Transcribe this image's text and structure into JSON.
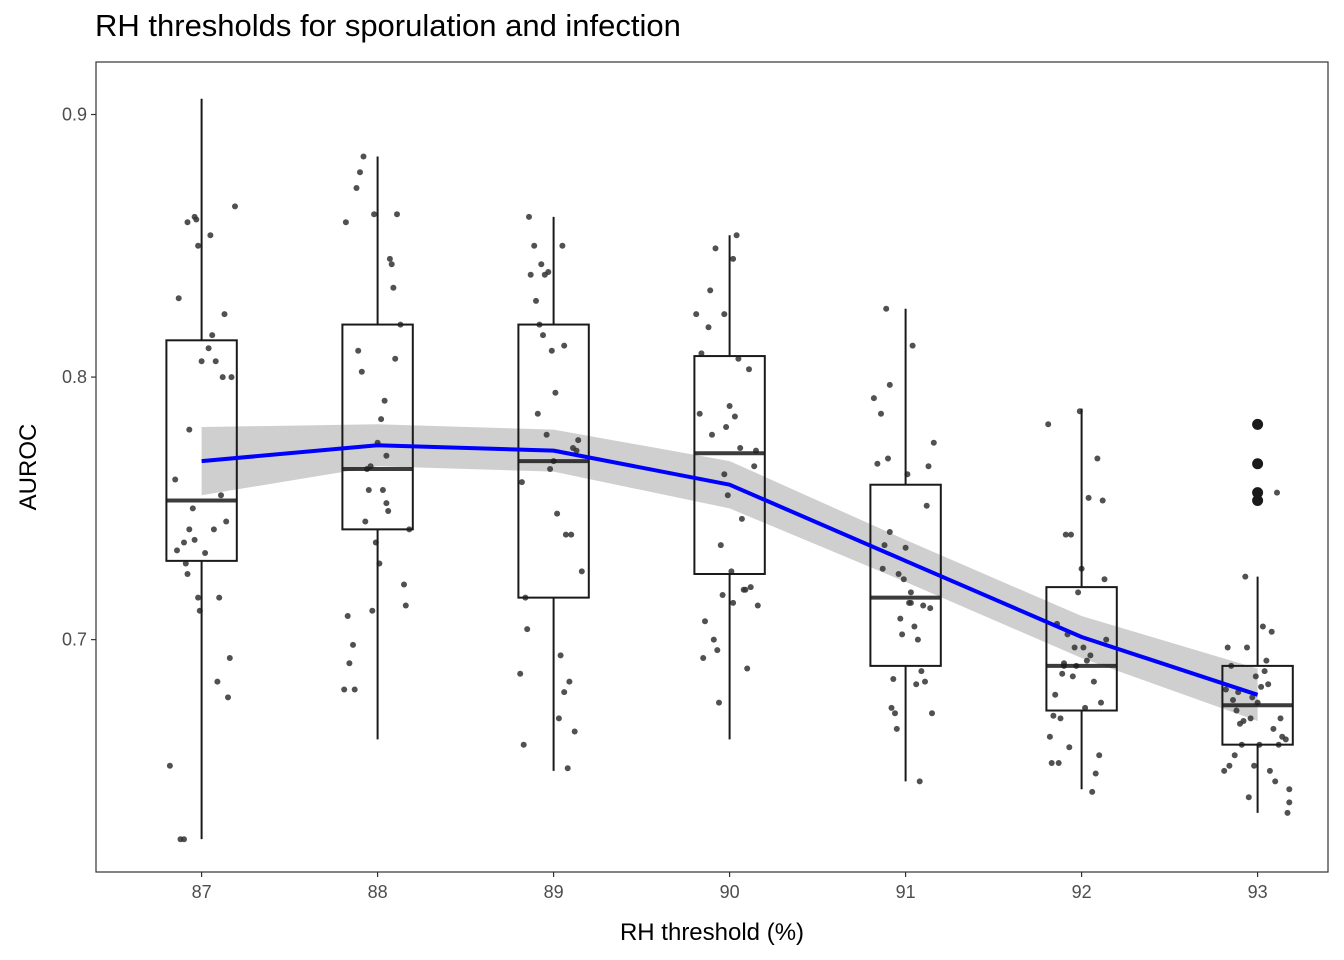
{
  "chart_data": {
    "type": "box",
    "title": "RH thresholds for sporulation and infection",
    "xlabel": "RH threshold (%)",
    "ylabel": "AUROC",
    "categories": [
      "87",
      "88",
      "89",
      "90",
      "91",
      "92",
      "93"
    ],
    "xlim": [
      86.4,
      93.4
    ],
    "ylim": [
      0.6115,
      0.92
    ],
    "yticks": [
      0.7,
      0.8,
      0.9
    ],
    "ytick_labels": [
      "0.7",
      "0.8",
      "0.9"
    ],
    "grid": false,
    "colors": {
      "trend": "#0000ff",
      "band": "#cccccc",
      "box": "#1a1a1a",
      "points": "#333333"
    },
    "boxes": [
      {
        "category": "87",
        "whisker_low": 0.624,
        "q1": 0.73,
        "median": 0.753,
        "q3": 0.814,
        "whisker_high": 0.906,
        "outliers": []
      },
      {
        "category": "88",
        "whisker_low": 0.662,
        "q1": 0.742,
        "median": 0.765,
        "q3": 0.82,
        "whisker_high": 0.884,
        "outliers": []
      },
      {
        "category": "89",
        "whisker_low": 0.65,
        "q1": 0.716,
        "median": 0.768,
        "q3": 0.82,
        "whisker_high": 0.861,
        "outliers": []
      },
      {
        "category": "90",
        "whisker_low": 0.662,
        "q1": 0.725,
        "median": 0.771,
        "q3": 0.808,
        "whisker_high": 0.854,
        "outliers": []
      },
      {
        "category": "91",
        "whisker_low": 0.646,
        "q1": 0.69,
        "median": 0.716,
        "q3": 0.759,
        "whisker_high": 0.826,
        "outliers": []
      },
      {
        "category": "92",
        "whisker_low": 0.643,
        "q1": 0.673,
        "median": 0.69,
        "q3": 0.72,
        "whisker_high": 0.788,
        "outliers": []
      },
      {
        "category": "93",
        "whisker_low": 0.634,
        "q1": 0.66,
        "median": 0.675,
        "q3": 0.69,
        "whisker_high": 0.724,
        "outliers": [
          0.782,
          0.767,
          0.756,
          0.753
        ]
      }
    ],
    "trend_line": {
      "x": [
        87,
        88,
        89,
        90,
        91,
        92,
        93
      ],
      "y": [
        0.768,
        0.774,
        0.772,
        0.759,
        0.73,
        0.701,
        0.679
      ],
      "band_low": [
        0.755,
        0.766,
        0.764,
        0.75,
        0.722,
        0.693,
        0.669
      ],
      "band_high": [
        0.781,
        0.782,
        0.78,
        0.768,
        0.738,
        0.709,
        0.689
      ]
    },
    "jitter_points": [
      {
        "x": 86.82,
        "y": 0.652
      },
      {
        "x": 86.85,
        "y": 0.761
      },
      {
        "x": 86.86,
        "y": 0.734
      },
      {
        "x": 86.87,
        "y": 0.83
      },
      {
        "x": 86.88,
        "y": 0.624
      },
      {
        "x": 86.9,
        "y": 0.624
      },
      {
        "x": 86.9,
        "y": 0.737
      },
      {
        "x": 86.91,
        "y": 0.729
      },
      {
        "x": 86.92,
        "y": 0.725
      },
      {
        "x": 86.92,
        "y": 0.859
      },
      {
        "x": 86.93,
        "y": 0.78
      },
      {
        "x": 86.95,
        "y": 0.75
      },
      {
        "x": 86.96,
        "y": 0.861
      },
      {
        "x": 86.97,
        "y": 0.86
      },
      {
        "x": 86.98,
        "y": 0.85
      },
      {
        "x": 86.98,
        "y": 0.716
      },
      {
        "x": 86.99,
        "y": 0.711
      },
      {
        "x": 86.96,
        "y": 0.738
      },
      {
        "x": 87.0,
        "y": 0.806
      },
      {
        "x": 87.04,
        "y": 0.811
      },
      {
        "x": 87.05,
        "y": 0.854
      },
      {
        "x": 87.06,
        "y": 0.816
      },
      {
        "x": 87.07,
        "y": 0.742
      },
      {
        "x": 87.08,
        "y": 0.806
      },
      {
        "x": 87.09,
        "y": 0.684
      },
      {
        "x": 87.1,
        "y": 0.716
      },
      {
        "x": 87.12,
        "y": 0.8
      },
      {
        "x": 87.13,
        "y": 0.824
      },
      {
        "x": 87.14,
        "y": 0.745
      },
      {
        "x": 87.15,
        "y": 0.678
      },
      {
        "x": 87.16,
        "y": 0.693
      },
      {
        "x": 87.17,
        "y": 0.8
      },
      {
        "x": 87.19,
        "y": 0.865
      },
      {
        "x": 86.93,
        "y": 0.742
      },
      {
        "x": 87.02,
        "y": 0.733
      },
      {
        "x": 87.11,
        "y": 0.755
      },
      {
        "x": 87.81,
        "y": 0.681
      },
      {
        "x": 87.82,
        "y": 0.859
      },
      {
        "x": 87.83,
        "y": 0.709
      },
      {
        "x": 87.84,
        "y": 0.691
      },
      {
        "x": 87.86,
        "y": 0.698
      },
      {
        "x": 87.87,
        "y": 0.681
      },
      {
        "x": 87.88,
        "y": 0.872
      },
      {
        "x": 87.89,
        "y": 0.81
      },
      {
        "x": 87.9,
        "y": 0.878
      },
      {
        "x": 87.91,
        "y": 0.802
      },
      {
        "x": 87.92,
        "y": 0.884
      },
      {
        "x": 87.93,
        "y": 0.745
      },
      {
        "x": 87.95,
        "y": 0.757
      },
      {
        "x": 87.96,
        "y": 0.766
      },
      {
        "x": 87.97,
        "y": 0.711
      },
      {
        "x": 87.98,
        "y": 0.862
      },
      {
        "x": 87.99,
        "y": 0.737
      },
      {
        "x": 88.01,
        "y": 0.729
      },
      {
        "x": 88.02,
        "y": 0.784
      },
      {
        "x": 88.03,
        "y": 0.757
      },
      {
        "x": 88.04,
        "y": 0.791
      },
      {
        "x": 88.05,
        "y": 0.752
      },
      {
        "x": 88.06,
        "y": 0.749
      },
      {
        "x": 88.07,
        "y": 0.845
      },
      {
        "x": 88.08,
        "y": 0.843
      },
      {
        "x": 88.09,
        "y": 0.834
      },
      {
        "x": 88.1,
        "y": 0.807
      },
      {
        "x": 88.11,
        "y": 0.862
      },
      {
        "x": 88.13,
        "y": 0.82
      },
      {
        "x": 88.15,
        "y": 0.721
      },
      {
        "x": 88.16,
        "y": 0.713
      },
      {
        "x": 88.18,
        "y": 0.742
      },
      {
        "x": 88.0,
        "y": 0.775
      },
      {
        "x": 88.05,
        "y": 0.77
      },
      {
        "x": 87.94,
        "y": 0.765
      },
      {
        "x": 88.81,
        "y": 0.687
      },
      {
        "x": 88.82,
        "y": 0.76
      },
      {
        "x": 88.83,
        "y": 0.66
      },
      {
        "x": 88.84,
        "y": 0.716
      },
      {
        "x": 88.85,
        "y": 0.704
      },
      {
        "x": 88.86,
        "y": 0.861
      },
      {
        "x": 88.87,
        "y": 0.839
      },
      {
        "x": 88.89,
        "y": 0.85
      },
      {
        "x": 88.9,
        "y": 0.829
      },
      {
        "x": 88.91,
        "y": 0.786
      },
      {
        "x": 88.92,
        "y": 0.82
      },
      {
        "x": 88.93,
        "y": 0.843
      },
      {
        "x": 88.94,
        "y": 0.816
      },
      {
        "x": 88.95,
        "y": 0.839
      },
      {
        "x": 88.96,
        "y": 0.778
      },
      {
        "x": 88.97,
        "y": 0.84
      },
      {
        "x": 88.99,
        "y": 0.81
      },
      {
        "x": 89.0,
        "y": 0.768
      },
      {
        "x": 89.01,
        "y": 0.794
      },
      {
        "x": 89.02,
        "y": 0.748
      },
      {
        "x": 89.03,
        "y": 0.67
      },
      {
        "x": 89.04,
        "y": 0.694
      },
      {
        "x": 89.05,
        "y": 0.85
      },
      {
        "x": 89.06,
        "y": 0.812
      },
      {
        "x": 89.07,
        "y": 0.74
      },
      {
        "x": 89.08,
        "y": 0.651
      },
      {
        "x": 89.09,
        "y": 0.684
      },
      {
        "x": 89.1,
        "y": 0.74
      },
      {
        "x": 89.12,
        "y": 0.665
      },
      {
        "x": 89.14,
        "y": 0.776
      },
      {
        "x": 89.16,
        "y": 0.726
      },
      {
        "x": 89.11,
        "y": 0.773
      },
      {
        "x": 89.13,
        "y": 0.772
      },
      {
        "x": 89.06,
        "y": 0.68
      },
      {
        "x": 88.98,
        "y": 0.765
      },
      {
        "x": 89.81,
        "y": 0.824
      },
      {
        "x": 89.83,
        "y": 0.786
      },
      {
        "x": 89.84,
        "y": 0.809
      },
      {
        "x": 89.85,
        "y": 0.693
      },
      {
        "x": 89.86,
        "y": 0.707
      },
      {
        "x": 89.88,
        "y": 0.819
      },
      {
        "x": 89.89,
        "y": 0.833
      },
      {
        "x": 89.9,
        "y": 0.778
      },
      {
        "x": 89.91,
        "y": 0.7
      },
      {
        "x": 89.92,
        "y": 0.849
      },
      {
        "x": 89.93,
        "y": 0.696
      },
      {
        "x": 89.94,
        "y": 0.676
      },
      {
        "x": 89.95,
        "y": 0.736
      },
      {
        "x": 89.96,
        "y": 0.717
      },
      {
        "x": 89.97,
        "y": 0.824
      },
      {
        "x": 89.98,
        "y": 0.781
      },
      {
        "x": 89.99,
        "y": 0.755
      },
      {
        "x": 90.0,
        "y": 0.789
      },
      {
        "x": 90.01,
        "y": 0.726
      },
      {
        "x": 90.02,
        "y": 0.845
      },
      {
        "x": 90.03,
        "y": 0.785
      },
      {
        "x": 90.04,
        "y": 0.854
      },
      {
        "x": 90.05,
        "y": 0.807
      },
      {
        "x": 90.06,
        "y": 0.773
      },
      {
        "x": 90.07,
        "y": 0.746
      },
      {
        "x": 90.08,
        "y": 0.719
      },
      {
        "x": 90.09,
        "y": 0.719
      },
      {
        "x": 90.1,
        "y": 0.689
      },
      {
        "x": 90.11,
        "y": 0.803
      },
      {
        "x": 90.12,
        "y": 0.72
      },
      {
        "x": 90.14,
        "y": 0.766
      },
      {
        "x": 90.16,
        "y": 0.713
      },
      {
        "x": 90.15,
        "y": 0.772
      },
      {
        "x": 89.97,
        "y": 0.763
      },
      {
        "x": 90.02,
        "y": 0.714
      },
      {
        "x": 90.82,
        "y": 0.792
      },
      {
        "x": 90.84,
        "y": 0.767
      },
      {
        "x": 90.86,
        "y": 0.786
      },
      {
        "x": 90.87,
        "y": 0.727
      },
      {
        "x": 90.88,
        "y": 0.736
      },
      {
        "x": 90.89,
        "y": 0.826
      },
      {
        "x": 90.9,
        "y": 0.769
      },
      {
        "x": 90.91,
        "y": 0.797
      },
      {
        "x": 90.92,
        "y": 0.674
      },
      {
        "x": 90.93,
        "y": 0.685
      },
      {
        "x": 90.94,
        "y": 0.672
      },
      {
        "x": 90.95,
        "y": 0.666
      },
      {
        "x": 90.96,
        "y": 0.725
      },
      {
        "x": 90.97,
        "y": 0.708
      },
      {
        "x": 90.98,
        "y": 0.702
      },
      {
        "x": 90.99,
        "y": 0.723
      },
      {
        "x": 91.0,
        "y": 0.735
      },
      {
        "x": 91.01,
        "y": 0.763
      },
      {
        "x": 91.02,
        "y": 0.714
      },
      {
        "x": 91.03,
        "y": 0.718
      },
      {
        "x": 91.04,
        "y": 0.812
      },
      {
        "x": 91.05,
        "y": 0.705
      },
      {
        "x": 91.06,
        "y": 0.683
      },
      {
        "x": 91.07,
        "y": 0.7
      },
      {
        "x": 91.08,
        "y": 0.646
      },
      {
        "x": 91.09,
        "y": 0.688
      },
      {
        "x": 91.1,
        "y": 0.713
      },
      {
        "x": 91.11,
        "y": 0.684
      },
      {
        "x": 91.12,
        "y": 0.751
      },
      {
        "x": 91.13,
        "y": 0.766
      },
      {
        "x": 91.14,
        "y": 0.712
      },
      {
        "x": 91.15,
        "y": 0.672
      },
      {
        "x": 91.16,
        "y": 0.775
      },
      {
        "x": 90.91,
        "y": 0.741
      },
      {
        "x": 91.03,
        "y": 0.714
      },
      {
        "x": 91.81,
        "y": 0.782
      },
      {
        "x": 91.82,
        "y": 0.663
      },
      {
        "x": 91.83,
        "y": 0.653
      },
      {
        "x": 91.84,
        "y": 0.671
      },
      {
        "x": 91.85,
        "y": 0.679
      },
      {
        "x": 91.86,
        "y": 0.706
      },
      {
        "x": 91.87,
        "y": 0.653
      },
      {
        "x": 91.88,
        "y": 0.67
      },
      {
        "x": 91.89,
        "y": 0.687
      },
      {
        "x": 91.9,
        "y": 0.69
      },
      {
        "x": 91.91,
        "y": 0.74
      },
      {
        "x": 91.92,
        "y": 0.702
      },
      {
        "x": 91.93,
        "y": 0.659
      },
      {
        "x": 91.94,
        "y": 0.74
      },
      {
        "x": 91.95,
        "y": 0.686
      },
      {
        "x": 91.96,
        "y": 0.697
      },
      {
        "x": 91.97,
        "y": 0.69
      },
      {
        "x": 91.98,
        "y": 0.718
      },
      {
        "x": 91.99,
        "y": 0.787
      },
      {
        "x": 92.0,
        "y": 0.727
      },
      {
        "x": 92.01,
        "y": 0.697
      },
      {
        "x": 92.02,
        "y": 0.674
      },
      {
        "x": 92.03,
        "y": 0.692
      },
      {
        "x": 92.04,
        "y": 0.754
      },
      {
        "x": 92.05,
        "y": 0.694
      },
      {
        "x": 92.06,
        "y": 0.642
      },
      {
        "x": 92.07,
        "y": 0.684
      },
      {
        "x": 92.08,
        "y": 0.649
      },
      {
        "x": 92.09,
        "y": 0.769
      },
      {
        "x": 92.1,
        "y": 0.656
      },
      {
        "x": 92.11,
        "y": 0.676
      },
      {
        "x": 92.12,
        "y": 0.753
      },
      {
        "x": 92.13,
        "y": 0.723
      },
      {
        "x": 92.14,
        "y": 0.7
      },
      {
        "x": 91.9,
        "y": 0.691
      },
      {
        "x": 92.81,
        "y": 0.65
      },
      {
        "x": 92.82,
        "y": 0.681
      },
      {
        "x": 92.83,
        "y": 0.697
      },
      {
        "x": 92.84,
        "y": 0.652
      },
      {
        "x": 92.85,
        "y": 0.69
      },
      {
        "x": 92.86,
        "y": 0.677
      },
      {
        "x": 92.87,
        "y": 0.656
      },
      {
        "x": 92.88,
        "y": 0.673
      },
      {
        "x": 92.89,
        "y": 0.68
      },
      {
        "x": 92.9,
        "y": 0.668
      },
      {
        "x": 92.91,
        "y": 0.66
      },
      {
        "x": 92.92,
        "y": 0.669
      },
      {
        "x": 92.93,
        "y": 0.724
      },
      {
        "x": 92.94,
        "y": 0.697
      },
      {
        "x": 92.95,
        "y": 0.64
      },
      {
        "x": 92.96,
        "y": 0.67
      },
      {
        "x": 92.97,
        "y": 0.678
      },
      {
        "x": 92.98,
        "y": 0.652
      },
      {
        "x": 92.99,
        "y": 0.686
      },
      {
        "x": 93.0,
        "y": 0.676
      },
      {
        "x": 93.01,
        "y": 0.66
      },
      {
        "x": 93.02,
        "y": 0.682
      },
      {
        "x": 93.03,
        "y": 0.705
      },
      {
        "x": 93.04,
        "y": 0.688
      },
      {
        "x": 93.05,
        "y": 0.692
      },
      {
        "x": 93.06,
        "y": 0.683
      },
      {
        "x": 93.07,
        "y": 0.65
      },
      {
        "x": 93.08,
        "y": 0.703
      },
      {
        "x": 93.09,
        "y": 0.666
      },
      {
        "x": 93.1,
        "y": 0.646
      },
      {
        "x": 93.11,
        "y": 0.756
      },
      {
        "x": 93.12,
        "y": 0.66
      },
      {
        "x": 93.13,
        "y": 0.67
      },
      {
        "x": 93.14,
        "y": 0.663
      },
      {
        "x": 93.17,
        "y": 0.634
      },
      {
        "x": 93.18,
        "y": 0.638
      },
      {
        "x": 93.18,
        "y": 0.643
      },
      {
        "x": 93.16,
        "y": 0.662
      }
    ]
  }
}
